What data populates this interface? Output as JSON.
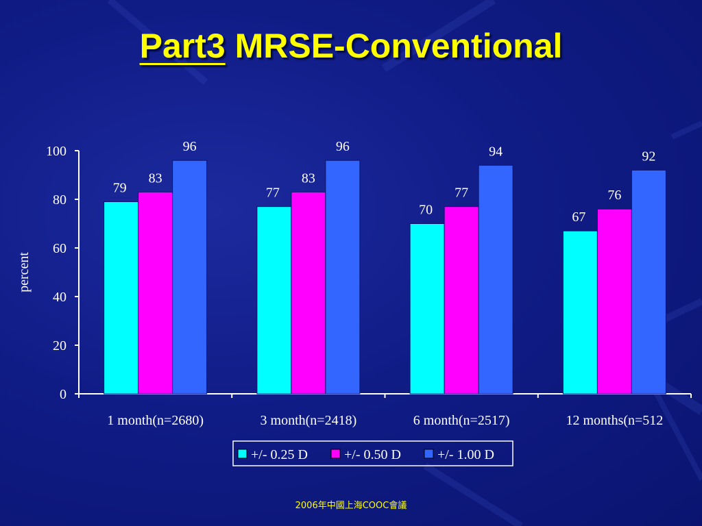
{
  "slide": {
    "title_part": "Part3",
    "title_rest": "MRSE-Conventional",
    "footer": "2006年中國上海COOC會議"
  },
  "chart_data": {
    "type": "bar",
    "title": "",
    "xlabel": "",
    "ylabel": "percent",
    "ylim": [
      0,
      100
    ],
    "yticks": [
      0,
      20,
      40,
      60,
      80,
      100
    ],
    "categories": [
      "1 month(n=2680)",
      "3 month(n=2418)",
      "6 month(n=2517)",
      "12 months(n=512"
    ],
    "series": [
      {
        "name": "+/- 0.25 D",
        "color": "#00ffff",
        "values": [
          79,
          77,
          70,
          67
        ]
      },
      {
        "name": "+/- 0.50 D",
        "color": "#ff00ff",
        "values": [
          83,
          83,
          77,
          76
        ]
      },
      {
        "name": "+/- 1.00 D",
        "color": "#3366ff",
        "values": [
          96,
          96,
          94,
          92
        ]
      }
    ],
    "grid": false,
    "legend_position": "bottom",
    "data_labels": true
  }
}
